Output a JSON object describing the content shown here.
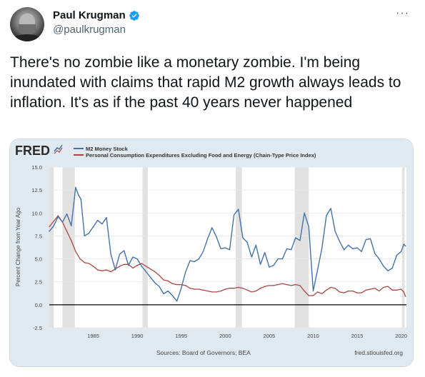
{
  "tweet": {
    "author_name": "Paul Krugman",
    "handle": "@paulkrugman",
    "verified": true,
    "more_icon": "more-horizontal-icon",
    "text": "There's no zombie like a monetary zombie. I'm being inundated with claims that rapid M2 growth always leads to inflation. It's as if the past 40 years never happened"
  },
  "colors": {
    "m2": "#4572a7",
    "pce": "#aa4643",
    "recession": "#e1e1e1",
    "card_bg": "#e1e9f0",
    "plot_bg": "#ffffff",
    "fred_text": "#2b2b2b"
  },
  "chart_data": {
    "type": "line",
    "fred_logo": "FRED",
    "ylabel": "Percent Change from Year Ago",
    "ylim": [
      -2.5,
      15.0
    ],
    "xlim": [
      1980,
      2020.6
    ],
    "yticks": [
      "15.0",
      "12.5",
      "10.0",
      "7.5",
      "5.0",
      "2.5",
      "0.0",
      "-2.5"
    ],
    "ytick_values": [
      15.0,
      12.5,
      10.0,
      7.5,
      5.0,
      2.5,
      0.0,
      -2.5
    ],
    "xticks": [
      "1985",
      "1990",
      "1995",
      "2000",
      "2005",
      "2010",
      "2015",
      "2020"
    ],
    "xtick_values": [
      1985,
      1990,
      1995,
      2000,
      2005,
      2010,
      2015,
      2020
    ],
    "recessions": [
      [
        1980.0,
        1980.5
      ],
      [
        1981.5,
        1982.9
      ],
      [
        1990.6,
        1991.2
      ],
      [
        2001.2,
        2001.9
      ],
      [
        2007.9,
        2009.5
      ],
      [
        2020.1,
        2020.4
      ]
    ],
    "legend_position": "top-left",
    "source": "Sources: Board of Governors; BEA",
    "url": "fred.stlouisfed.org",
    "series": [
      {
        "name": "M2 Money Stock",
        "color": "#4572a7",
        "x": [
          1980.0,
          1980.5,
          1981.0,
          1981.5,
          1982.0,
          1982.5,
          1983.0,
          1983.3,
          1983.6,
          1984.0,
          1984.5,
          1985.0,
          1985.5,
          1986.0,
          1986.5,
          1987.0,
          1987.5,
          1988.0,
          1988.5,
          1989.0,
          1989.5,
          1990.0,
          1990.5,
          1991.0,
          1991.5,
          1992.0,
          1992.5,
          1993.0,
          1993.5,
          1994.0,
          1994.5,
          1995.0,
          1995.5,
          1996.0,
          1996.5,
          1997.0,
          1997.5,
          1998.0,
          1998.5,
          1999.0,
          1999.5,
          2000.0,
          2000.5,
          2001.0,
          2001.5,
          2002.0,
          2002.5,
          2003.0,
          2003.5,
          2004.0,
          2004.5,
          2005.0,
          2005.5,
          2006.0,
          2006.5,
          2007.0,
          2007.5,
          2008.0,
          2008.5,
          2009.0,
          2009.5,
          2010.0,
          2010.5,
          2011.0,
          2011.5,
          2012.0,
          2012.5,
          2013.0,
          2013.5,
          2014.0,
          2014.5,
          2015.0,
          2015.5,
          2016.0,
          2016.5,
          2017.0,
          2017.5,
          2018.0,
          2018.5,
          2019.0,
          2019.5,
          2020.0,
          2020.3,
          2020.5
        ],
        "values": [
          8.0,
          8.6,
          9.6,
          9.0,
          9.9,
          8.6,
          12.8,
          12.0,
          11.5,
          7.5,
          7.8,
          8.5,
          9.2,
          8.8,
          9.5,
          5.5,
          3.8,
          5.5,
          5.9,
          4.3,
          5.2,
          5.0,
          4.2,
          3.6,
          3.0,
          2.4,
          2.0,
          1.2,
          1.5,
          1.0,
          0.4,
          1.8,
          3.6,
          4.8,
          4.7,
          5.0,
          5.8,
          7.2,
          8.4,
          7.4,
          6.1,
          6.2,
          6.0,
          9.8,
          10.4,
          7.3,
          6.8,
          5.2,
          6.5,
          4.4,
          5.7,
          4.1,
          4.3,
          5.0,
          5.0,
          6.1,
          6.0,
          7.3,
          7.0,
          10.0,
          8.5,
          1.5,
          3.8,
          6.2,
          9.7,
          10.5,
          8.0,
          6.9,
          6.0,
          6.5,
          6.1,
          6.2,
          5.8,
          7.1,
          7.2,
          5.6,
          5.0,
          4.2,
          3.7,
          4.0,
          5.4,
          5.8,
          6.6,
          6.4
        ]
      },
      {
        "name": "Personal Consumption Expenditures Excluding Food and Energy (Chain-Type Price Index)",
        "color": "#aa4643",
        "x": [
          1980.0,
          1980.5,
          1981.0,
          1981.5,
          1982.0,
          1982.5,
          1983.0,
          1983.5,
          1984.0,
          1984.5,
          1985.0,
          1985.5,
          1986.0,
          1986.5,
          1987.0,
          1987.5,
          1988.0,
          1988.5,
          1989.0,
          1989.5,
          1990.0,
          1990.5,
          1991.0,
          1991.5,
          1992.0,
          1992.5,
          1993.0,
          1993.5,
          1994.0,
          1994.5,
          1995.0,
          1995.5,
          1996.0,
          1996.5,
          1997.0,
          1997.5,
          1998.0,
          1998.5,
          1999.0,
          1999.5,
          2000.0,
          2000.5,
          2001.0,
          2001.5,
          2002.0,
          2002.5,
          2003.0,
          2003.5,
          2004.0,
          2004.5,
          2005.0,
          2005.5,
          2006.0,
          2006.5,
          2007.0,
          2007.5,
          2008.0,
          2008.5,
          2009.0,
          2009.5,
          2010.0,
          2010.5,
          2011.0,
          2011.5,
          2012.0,
          2012.5,
          2013.0,
          2013.5,
          2014.0,
          2014.5,
          2015.0,
          2015.5,
          2016.0,
          2016.5,
          2017.0,
          2017.5,
          2018.0,
          2018.5,
          2019.0,
          2019.5,
          2020.0,
          2020.3,
          2020.5
        ],
        "values": [
          8.5,
          9.1,
          9.7,
          9.0,
          8.0,
          7.0,
          5.8,
          5.0,
          4.6,
          4.5,
          4.2,
          3.8,
          3.7,
          3.8,
          3.6,
          3.9,
          4.2,
          4.4,
          4.4,
          4.0,
          4.3,
          4.5,
          4.2,
          3.9,
          3.6,
          3.2,
          2.7,
          2.6,
          2.3,
          2.2,
          2.2,
          2.1,
          1.8,
          1.7,
          1.7,
          1.6,
          1.5,
          1.4,
          1.4,
          1.5,
          1.7,
          1.8,
          1.8,
          1.9,
          1.8,
          1.6,
          1.4,
          1.5,
          1.8,
          2.0,
          2.1,
          2.1,
          2.2,
          2.3,
          2.2,
          2.1,
          2.2,
          2.1,
          1.5,
          1.0,
          1.0,
          1.4,
          1.2,
          1.6,
          1.9,
          1.8,
          1.4,
          1.3,
          1.5,
          1.5,
          1.3,
          1.3,
          1.6,
          1.7,
          1.8,
          1.5,
          1.9,
          2.0,
          1.6,
          1.6,
          1.7,
          1.4,
          0.9
        ]
      }
    ]
  }
}
